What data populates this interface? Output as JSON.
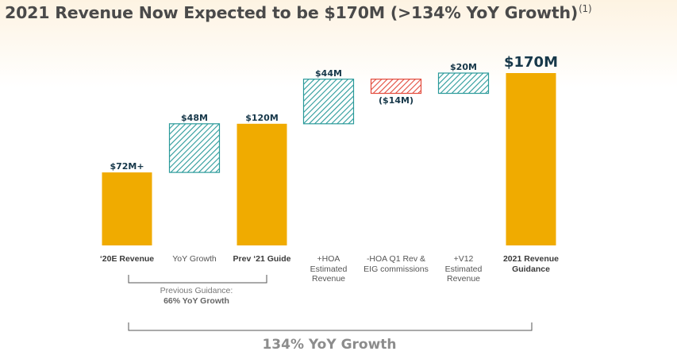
{
  "title": "2021 Revenue Now Expected to be $170M (>134% YoY Growth)",
  "title_footnote": "(1)",
  "colors": {
    "gold": "#f0ab00",
    "teal_hatch": "#2a9a9a",
    "red_hatch": "#e34a3c",
    "label_dark": "#17384a"
  },
  "chart_data": {
    "type": "bar",
    "subtype": "waterfall",
    "unit": "$M",
    "categories": [
      "'20E Revenue",
      "YoY Growth",
      "Prev '21 Guide",
      "+HOA Estimated Revenue",
      "-HOA Q1 Rev & EIG commissions",
      "+V12 Estimated Revenue",
      "2021 Revenue Guidance"
    ],
    "values": [
      72,
      48,
      120,
      44,
      -14,
      20,
      170
    ],
    "kinds": [
      "total",
      "delta",
      "total",
      "delta",
      "delta",
      "delta",
      "total"
    ],
    "data_labels": [
      "$72M+",
      "$48M",
      "$120M",
      "$44M",
      "($14M)",
      "$20M",
      "$170M"
    ],
    "ylim": [
      0,
      170
    ]
  },
  "categories_display": [
    [
      "‘20E Revenue"
    ],
    [
      "YoY Growth"
    ],
    [
      "Prev ‘21 Guide"
    ],
    [
      "+HOA",
      "Estimated",
      "Revenue"
    ],
    [
      "-HOA Q1 Rev &",
      "EIG commissions"
    ],
    [
      "+V12",
      "Estimated",
      "Revenue"
    ],
    [
      "2021 Revenue",
      "Guidance"
    ]
  ],
  "previous_guidance": {
    "label": "Previous Guidance:",
    "value": "66% YoY Growth"
  },
  "total_growth_label": "134% YoY Growth"
}
